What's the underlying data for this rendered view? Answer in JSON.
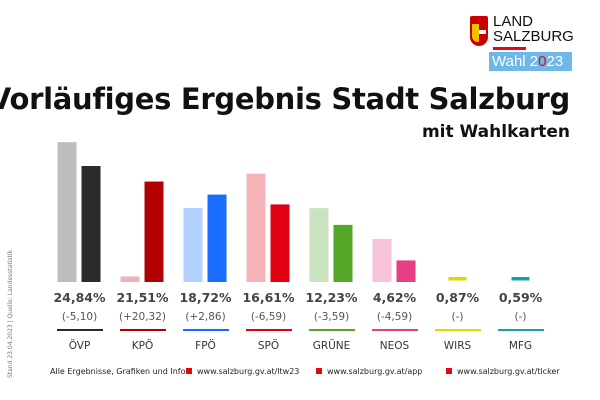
{
  "header": {
    "title": "Vorläufiges Ergebnis Stadt Salzburg",
    "subtitle": "mit Wahlkarten"
  },
  "logo": {
    "line1": "LAND",
    "line2": "SALZBURG",
    "badge_pre": "Wahl 2",
    "badge_x": "0",
    "badge_post": "23"
  },
  "source": "Stand 23.04.2023 | Quelle: Landesstatistik",
  "footer": {
    "label": "Alle Ergebnisse, Grafiken und Infos:",
    "links": [
      "www.salzburg.gv.at/ltw23",
      "www.salzburg.gv.at/app",
      "www.salzburg.gv.at/ticker"
    ]
  },
  "chart_data": {
    "type": "bar",
    "title": "Vorläufiges Ergebnis Stadt Salzburg",
    "categories": [
      "ÖVP",
      "KPÖ",
      "FPÖ",
      "SPÖ",
      "GRÜNE",
      "NEOS",
      "WIRS",
      "MFG"
    ],
    "series": [
      {
        "name": "previous",
        "values": [
          29.94,
          1.19,
          15.86,
          23.2,
          15.82,
          9.21,
          null,
          null
        ]
      },
      {
        "name": "current",
        "values": [
          24.84,
          21.51,
          18.72,
          16.61,
          12.23,
          4.62,
          0.87,
          0.59
        ]
      }
    ],
    "labels": [
      "24,84%",
      "21,51%",
      "18,72%",
      "16,61%",
      "12,23%",
      "4,62%",
      "0,87%",
      "0,59%"
    ],
    "changes": [
      "(-5,10)",
      "(+20,32)",
      "(+2,86)",
      "(-6,59)",
      "(-3,59)",
      "(-4,59)",
      "(-)",
      "(-)"
    ],
    "colors": [
      "#2b2b2b",
      "#b00000",
      "#1a6cff",
      "#e00012",
      "#56a62a",
      "#e83e84",
      "#e1d800",
      "#17a2a8"
    ],
    "light_colors": [
      "#bdbdbd",
      "#eeb3b8",
      "#b3d1ff",
      "#f5b5b8",
      "#cbe4c0",
      "#f7c3da",
      "#f5f0a0",
      "#a6dde0"
    ],
    "ylim": [
      0,
      30
    ]
  }
}
